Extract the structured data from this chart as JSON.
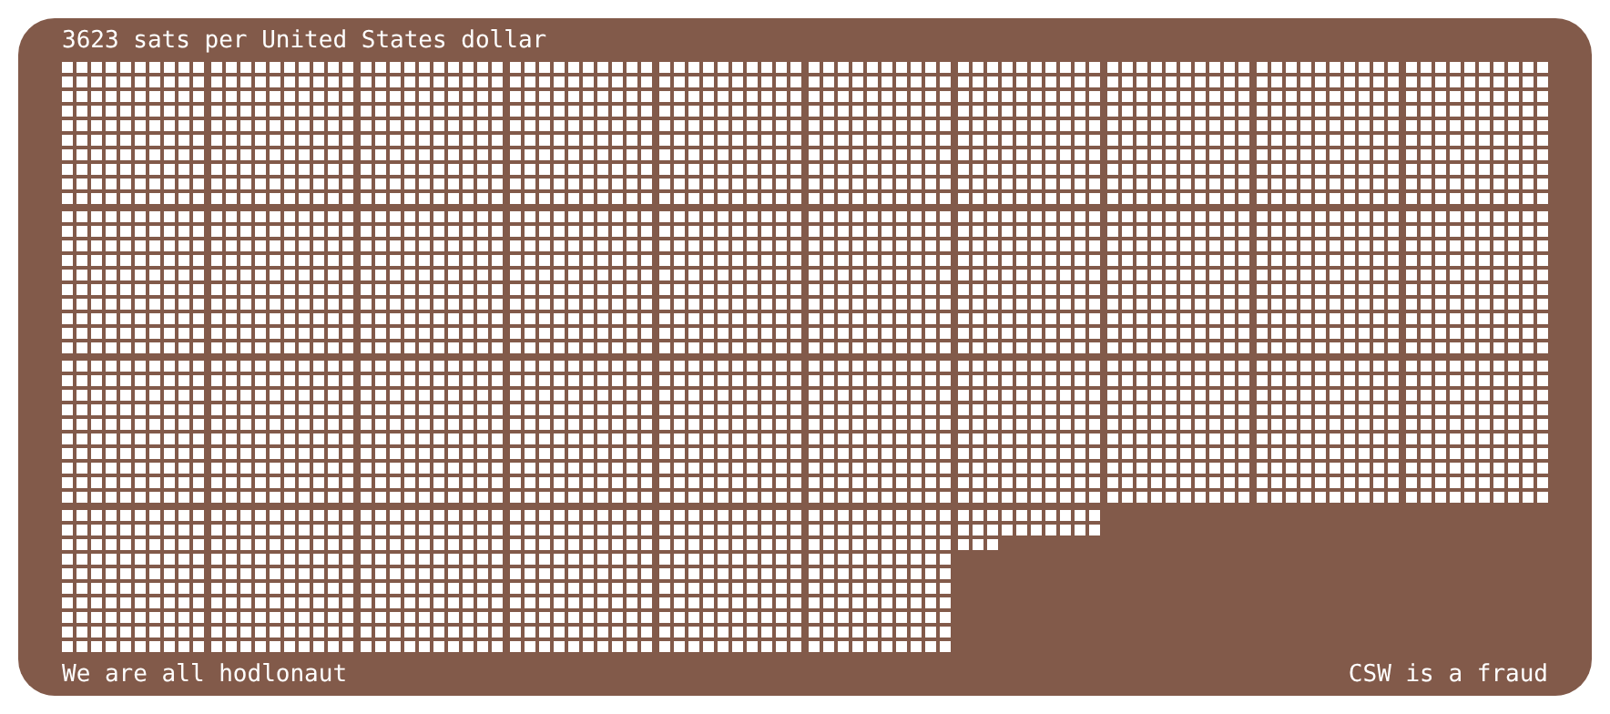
{
  "chart_data": {
    "type": "other",
    "title": "sats per United States dollar",
    "values": [
      3623
    ],
    "data_labels": true,
    "color": "#ffffff",
    "annotations": [
      "We are all hodlonaut",
      "CSW is a fraud"
    ]
  }
}
